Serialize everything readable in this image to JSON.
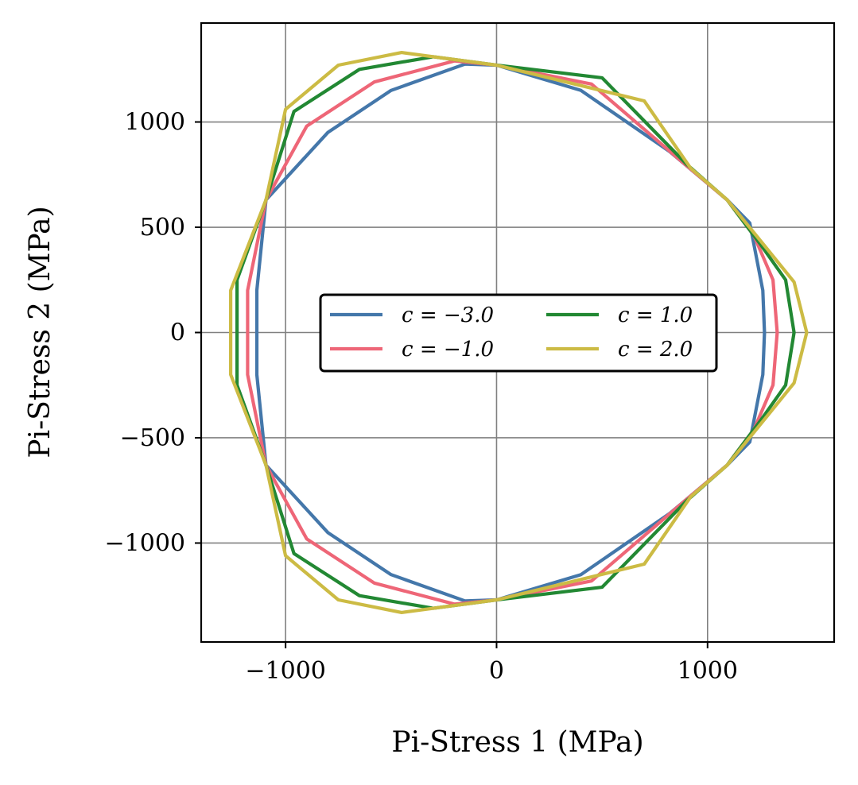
{
  "chart_data": {
    "type": "line",
    "title": "",
    "xlabel": "Pi-Stress 1 (MPa)",
    "ylabel": "Pi-Stress 2 (MPa)",
    "xlim": [
      -1400,
      1600
    ],
    "ylim": [
      -1470,
      1470
    ],
    "xticks": [
      -1000,
      0,
      1000
    ],
    "xtick_labels": [
      "−1000",
      "0",
      "1000"
    ],
    "yticks": [
      -1000,
      -500,
      0,
      500,
      1000
    ],
    "ytick_labels": [
      "−1000",
      "−500",
      "0",
      "500",
      "1000"
    ],
    "grid": true,
    "legend": {
      "position": "center",
      "columns": 2
    },
    "yield_stress_MPa": 1270,
    "series": [
      {
        "name": "c = −3.0",
        "c": -3.0,
        "color": "#4477aa",
        "points": [
          [
            1270,
            0
          ],
          [
            1262,
            200
          ],
          [
            1200,
            520
          ],
          [
            1093,
            630
          ],
          [
            820,
            860
          ],
          [
            400,
            1150
          ],
          [
            0,
            1270
          ],
          [
            -150,
            1275
          ],
          [
            -500,
            1150
          ],
          [
            -800,
            950
          ],
          [
            -1093,
            630
          ],
          [
            -1136,
            200
          ],
          [
            -1136,
            -200
          ],
          [
            -1093,
            -630
          ],
          [
            -800,
            -950
          ],
          [
            -500,
            -1150
          ],
          [
            -150,
            -1275
          ],
          [
            0,
            -1270
          ],
          [
            400,
            -1150
          ],
          [
            820,
            -860
          ],
          [
            1093,
            -630
          ],
          [
            1200,
            -520
          ],
          [
            1262,
            -200
          ]
        ]
      },
      {
        "name": "c = −1.0",
        "c": -1.0,
        "color": "#ee6677",
        "points": [
          [
            1330,
            0
          ],
          [
            1310,
            250
          ],
          [
            1220,
            460
          ],
          [
            1093,
            630
          ],
          [
            880,
            810
          ],
          [
            450,
            1180
          ],
          [
            0,
            1270
          ],
          [
            -200,
            1290
          ],
          [
            -580,
            1190
          ],
          [
            -900,
            980
          ],
          [
            -1093,
            630
          ],
          [
            -1180,
            200
          ],
          [
            -1180,
            -200
          ],
          [
            -1093,
            -630
          ],
          [
            -900,
            -980
          ],
          [
            -580,
            -1190
          ],
          [
            -200,
            -1290
          ],
          [
            0,
            -1270
          ],
          [
            450,
            -1180
          ],
          [
            880,
            -810
          ],
          [
            1093,
            -630
          ],
          [
            1220,
            -460
          ],
          [
            1310,
            -250
          ]
        ]
      },
      {
        "name": "c = 1.0",
        "c": 1.0,
        "color": "#228833",
        "points": [
          [
            1410,
            0
          ],
          [
            1370,
            250
          ],
          [
            1250,
            420
          ],
          [
            1093,
            630
          ],
          [
            900,
            800
          ],
          [
            500,
            1210
          ],
          [
            0,
            1270
          ],
          [
            -300,
            1310
          ],
          [
            -650,
            1250
          ],
          [
            -960,
            1050
          ],
          [
            -1093,
            630
          ],
          [
            -1230,
            250
          ],
          [
            -1230,
            -250
          ],
          [
            -1093,
            -630
          ],
          [
            -960,
            -1050
          ],
          [
            -650,
            -1250
          ],
          [
            -300,
            -1310
          ],
          [
            0,
            -1270
          ],
          [
            500,
            -1210
          ],
          [
            900,
            -800
          ],
          [
            1093,
            -630
          ],
          [
            1250,
            -420
          ],
          [
            1370,
            -250
          ]
        ]
      },
      {
        "name": "c = 2.0",
        "c": 2.0,
        "color": "#ccbb44",
        "points": [
          [
            1470,
            0
          ],
          [
            1410,
            240
          ],
          [
            1280,
            400
          ],
          [
            1093,
            630
          ],
          [
            920,
            780
          ],
          [
            700,
            1100
          ],
          [
            0,
            1270
          ],
          [
            -450,
            1330
          ],
          [
            -750,
            1270
          ],
          [
            -1000,
            1060
          ],
          [
            -1093,
            630
          ],
          [
            -1260,
            200
          ],
          [
            -1260,
            -200
          ],
          [
            -1093,
            -630
          ],
          [
            -1000,
            -1060
          ],
          [
            -750,
            -1270
          ],
          [
            -450,
            -1330
          ],
          [
            0,
            -1270
          ],
          [
            700,
            -1100
          ],
          [
            920,
            -780
          ],
          [
            1093,
            -630
          ],
          [
            1280,
            -400
          ],
          [
            1410,
            -240
          ]
        ]
      }
    ]
  }
}
